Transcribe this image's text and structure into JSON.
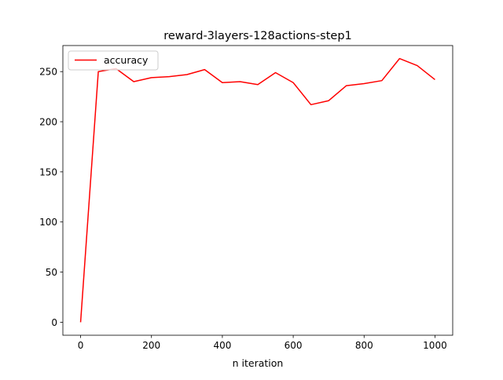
{
  "chart_data": {
    "type": "line",
    "title": "reward-3layers-128actions-step1",
    "xlabel": "n iteration",
    "ylabel": "",
    "xlim": [
      -50,
      1050
    ],
    "ylim": [
      -13,
      276
    ],
    "xticks": [
      0,
      200,
      400,
      600,
      800,
      1000
    ],
    "yticks": [
      0,
      50,
      100,
      150,
      200,
      250
    ],
    "grid": false,
    "legend_position": "upper-left",
    "series": [
      {
        "name": "accuracy",
        "color": "#ff0000",
        "x": [
          0,
          50,
          100,
          150,
          200,
          250,
          300,
          350,
          400,
          450,
          500,
          550,
          600,
          650,
          700,
          750,
          800,
          850,
          900,
          950,
          1000
        ],
        "y": [
          0,
          250,
          253,
          240,
          244,
          245,
          247,
          252,
          239,
          240,
          237,
          249,
          239,
          217,
          221,
          236,
          238,
          241,
          263,
          256,
          242
        ]
      }
    ]
  }
}
